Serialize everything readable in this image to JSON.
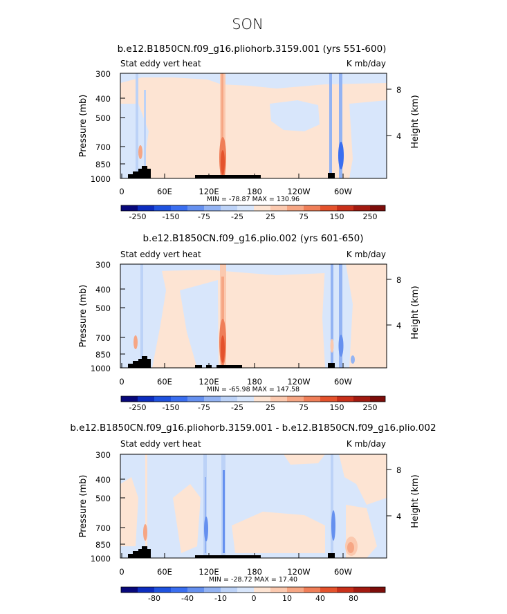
{
  "figure_title": "SON",
  "colors": {
    "neg": [
      "#08087a",
      "#0d2dbf",
      "#1f52df",
      "#3a6ef0",
      "#6590ef",
      "#93b3f3",
      "#bcd2f7",
      "#d8e6fb"
    ],
    "pos": [
      "#fde4d3",
      "#fbc9af",
      "#f6a684",
      "#ef7e58",
      "#e4522c",
      "#c8301a",
      "#a21a10",
      "#7c0d0a"
    ]
  },
  "chart_data": [
    {
      "type": "heatmap",
      "title": "b.e12.B1850CN.f09_g16.pliohorb.3159.001 (yrs 551-600)",
      "left_label": "Stat eddy vert heat",
      "right_label": "K mb/day",
      "ylabel": "Pressure (mb)",
      "ylabel_right": "Height (km)",
      "x_ticks": [
        "0",
        "60E",
        "120E",
        "180",
        "120W",
        "60W"
      ],
      "y_ticks": [
        "300",
        "400",
        "500",
        "700",
        "850",
        "1000"
      ],
      "height_ticks": [
        "8",
        "4"
      ],
      "minmax": "MIN = -78.87   MAX = 130.96",
      "colorbar_ticks": [
        "-250",
        "-150",
        "-75",
        "-25",
        "25",
        "75",
        "150",
        "250"
      ],
      "background_sign": "positive",
      "features": [
        {
          "lon": 133,
          "value": 130,
          "desc": "strong positive column near 133E"
        },
        {
          "lon": 290,
          "value": -78,
          "desc": "negative columns near 70W"
        },
        {
          "lon": 25,
          "value": 40,
          "desc": "weak mixed signal over Africa"
        }
      ]
    },
    {
      "type": "heatmap",
      "title": "b.e12.B1850CN.f09_g16.plio.002 (yrs 601-650)",
      "left_label": "Stat eddy vert heat",
      "right_label": "K mb/day",
      "ylabel": "Pressure (mb)",
      "ylabel_right": "Height (km)",
      "x_ticks": [
        "0",
        "60E",
        "120E",
        "180",
        "120W",
        "60W"
      ],
      "y_ticks": [
        "300",
        "400",
        "500",
        "700",
        "850",
        "1000"
      ],
      "height_ticks": [
        "8",
        "4"
      ],
      "minmax": "MIN = -65.98   MAX = 147.58",
      "colorbar_ticks": [
        "-250",
        "-150",
        "-75",
        "-25",
        "25",
        "75",
        "150",
        "250"
      ],
      "background_sign": "positive",
      "features": [
        {
          "lon": 133,
          "value": 147,
          "desc": "strong positive column near 133E"
        },
        {
          "lon": 290,
          "value": -65,
          "desc": "negative columns near 70W"
        }
      ]
    },
    {
      "type": "heatmap",
      "title": "b.e12.B1850CN.f09_g16.pliohorb.3159.001 - b.e12.B1850CN.f09_g16.plio.002",
      "left_label": "Stat eddy vert heat",
      "right_label": "K mb/day",
      "ylabel": "Pressure (mb)",
      "ylabel_right": "Height (km)",
      "x_ticks": [
        "0",
        "60E",
        "120E",
        "180",
        "120W",
        "60W"
      ],
      "y_ticks": [
        "300",
        "400",
        "500",
        "700",
        "850",
        "1000"
      ],
      "height_ticks": [
        "8",
        "4"
      ],
      "minmax": "MIN = -28.72   MAX =   17.40",
      "colorbar_ticks": [
        "-80",
        "-40",
        "-10",
        "0",
        "10",
        "40",
        "80"
      ],
      "background_sign": "negative",
      "features": [
        {
          "lon": 120,
          "value": -28,
          "desc": "negative columns near 120E-133E"
        },
        {
          "lon": 300,
          "value": 17,
          "desc": "positive near 60W surface"
        }
      ]
    }
  ]
}
